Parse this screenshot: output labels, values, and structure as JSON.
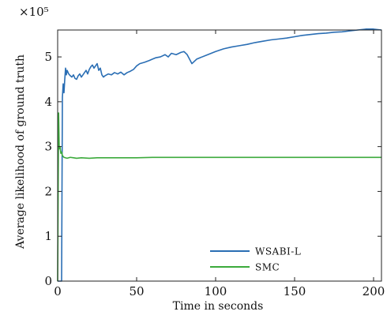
{
  "chart_data": {
    "type": "line",
    "title": "",
    "xlabel": "Time in seconds",
    "ylabel": "Average likelihood of ground truth",
    "y_scale_label": "×10⁵",
    "xlim": [
      0,
      205
    ],
    "ylim": [
      0,
      5.6
    ],
    "x_scale_multiplier": 1,
    "y_scale_multiplier": 100000,
    "xticks": [
      0,
      50,
      100,
      150,
      200
    ],
    "yticks": [
      0,
      1,
      2,
      3,
      4,
      5
    ],
    "grid": false,
    "legend_position": "bottom-right",
    "series": [
      {
        "name": "WSABI-L",
        "color": "#2A6EB4",
        "x": [
          0,
          2.5,
          3,
          3.5,
          4,
          4.5,
          5,
          5.5,
          6,
          7,
          8,
          9,
          10,
          11,
          12,
          13,
          14,
          15,
          16,
          17,
          18,
          19,
          20,
          21,
          22,
          23,
          24,
          25,
          26,
          27,
          28,
          29,
          30,
          32,
          34,
          36,
          38,
          40,
          42,
          44,
          46,
          48,
          50,
          52,
          55,
          58,
          60,
          62,
          65,
          68,
          70,
          72,
          75,
          78,
          80,
          82,
          85,
          88,
          90,
          95,
          100,
          105,
          110,
          115,
          120,
          125,
          130,
          135,
          140,
          145,
          150,
          155,
          160,
          165,
          170,
          175,
          180,
          185,
          190,
          195,
          200,
          205
        ],
        "values": [
          0,
          0,
          4.1,
          4.4,
          4.2,
          4.5,
          4.75,
          4.6,
          4.7,
          4.62,
          4.58,
          4.55,
          4.6,
          4.52,
          4.5,
          4.58,
          4.62,
          4.55,
          4.6,
          4.65,
          4.7,
          4.62,
          4.72,
          4.78,
          4.82,
          4.75,
          4.8,
          4.85,
          4.7,
          4.75,
          4.6,
          4.55,
          4.58,
          4.62,
          4.6,
          4.65,
          4.62,
          4.66,
          4.6,
          4.65,
          4.68,
          4.72,
          4.8,
          4.85,
          4.88,
          4.92,
          4.95,
          4.98,
          5.0,
          5.05,
          5.0,
          5.08,
          5.05,
          5.1,
          5.12,
          5.05,
          4.85,
          4.95,
          4.98,
          5.05,
          5.12,
          5.18,
          5.22,
          5.25,
          5.28,
          5.32,
          5.35,
          5.38,
          5.4,
          5.42,
          5.45,
          5.48,
          5.5,
          5.52,
          5.53,
          5.55,
          5.56,
          5.58,
          5.6,
          5.62,
          5.62,
          5.6
        ]
      },
      {
        "name": "SMC",
        "color": "#3CAA3C",
        "x": [
          0,
          0.6,
          1,
          1.5,
          2,
          2.5,
          3,
          3.5,
          4,
          5,
          6,
          8,
          10,
          12,
          15,
          20,
          25,
          30,
          40,
          50,
          60,
          80,
          100,
          120,
          140,
          160,
          180,
          200,
          205
        ],
        "values": [
          0,
          3.75,
          2.95,
          3.0,
          2.85,
          2.88,
          2.8,
          2.78,
          2.76,
          2.75,
          2.74,
          2.76,
          2.75,
          2.74,
          2.75,
          2.74,
          2.75,
          2.75,
          2.75,
          2.75,
          2.76,
          2.76,
          2.76,
          2.76,
          2.76,
          2.76,
          2.76,
          2.76,
          2.76
        ]
      }
    ]
  }
}
